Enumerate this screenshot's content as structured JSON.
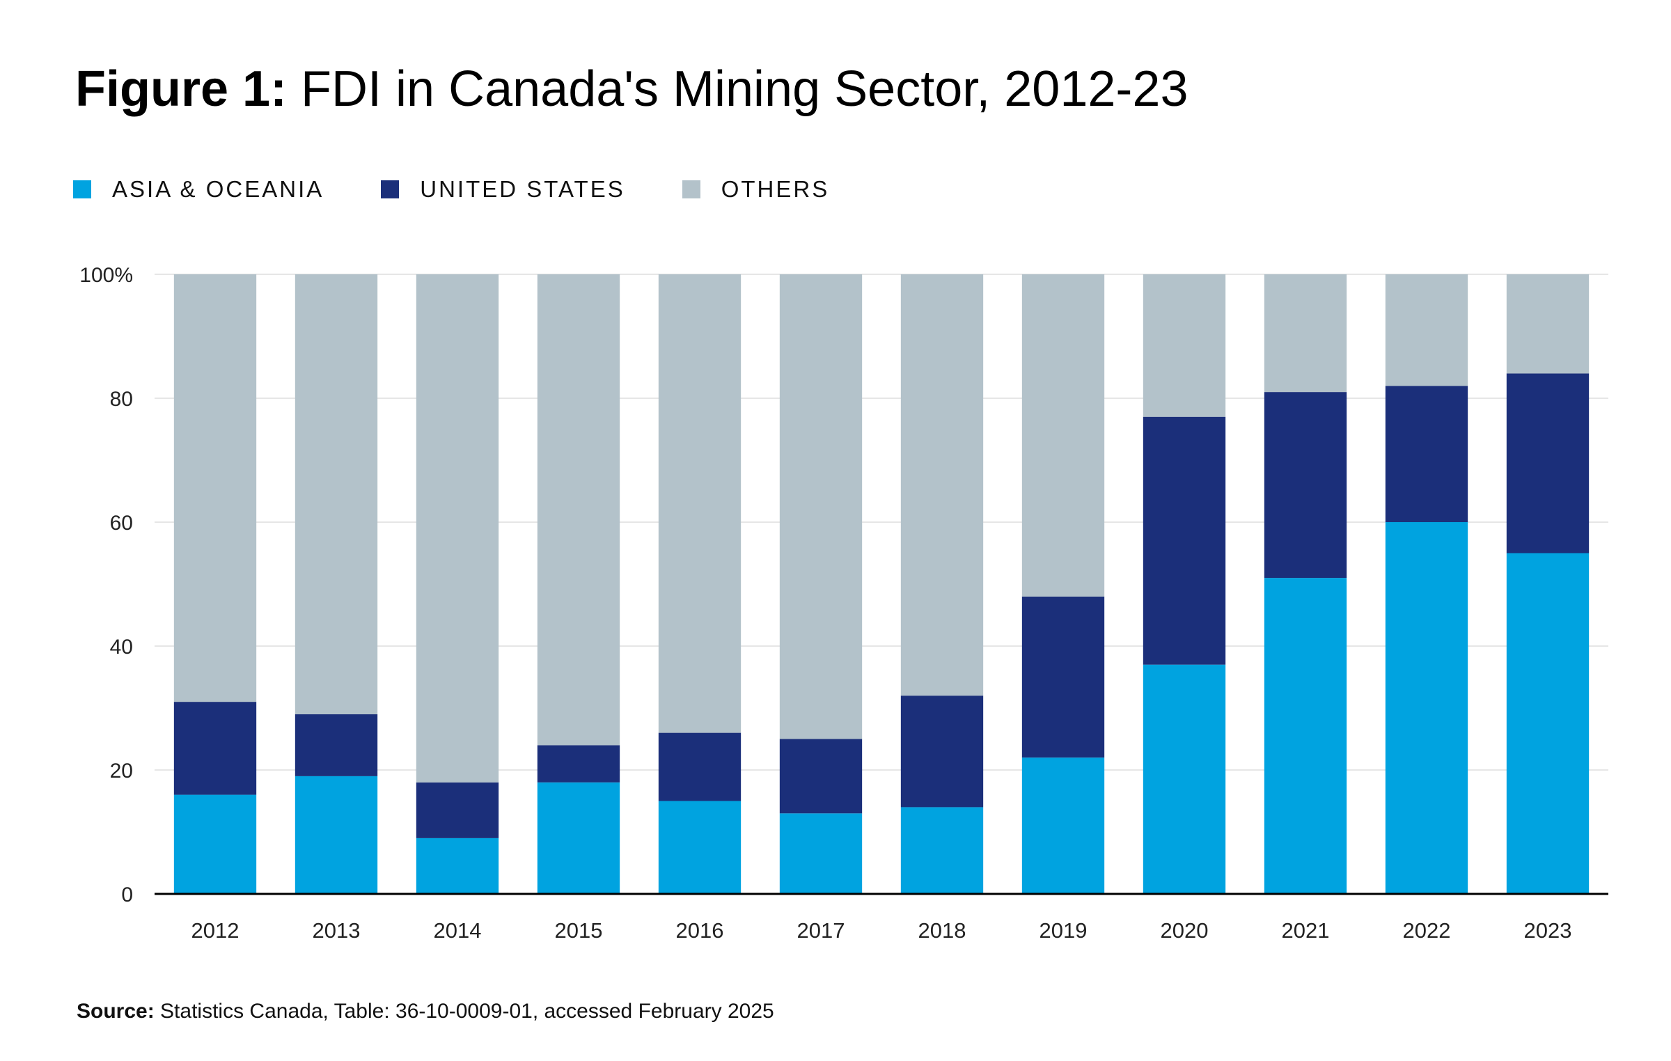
{
  "title_prefix": "Figure 1:",
  "title_main": "FDI in Canada's Mining Sector, 2012-23",
  "legend": [
    {
      "label": "ASIA & OCEANIA",
      "color": "#00A3E0"
    },
    {
      "label": "UNITED STATES",
      "color": "#1B2F7A"
    },
    {
      "label": "OTHERS",
      "color": "#B3C2CA"
    }
  ],
  "source_label": "Source:",
  "source_text": "Statistics Canada, Table: 36-10-0009-01, accessed February 2025",
  "chart_data": {
    "type": "bar",
    "stacked": true,
    "title": "FDI in Canada's Mining Sector, 2012-23",
    "categories": [
      "2012",
      "2013",
      "2014",
      "2015",
      "2016",
      "2017",
      "2018",
      "2019",
      "2020",
      "2021",
      "2022",
      "2023"
    ],
    "series": [
      {
        "name": "ASIA & OCEANIA",
        "color": "#00A3E0",
        "values": [
          16,
          19,
          9,
          18,
          15,
          13,
          14,
          22,
          37,
          51,
          60,
          55
        ]
      },
      {
        "name": "UNITED STATES",
        "color": "#1B2F7A",
        "values": [
          15,
          10,
          9,
          6,
          11,
          12,
          18,
          26,
          40,
          30,
          22,
          29
        ]
      },
      {
        "name": "OTHERS",
        "color": "#B3C2CA",
        "values": [
          69,
          71,
          82,
          76,
          74,
          75,
          68,
          52,
          23,
          19,
          18,
          16
        ]
      }
    ],
    "yticks": [
      "0",
      "20",
      "40",
      "60",
      "80",
      "100%"
    ],
    "ytick_values": [
      0,
      20,
      40,
      60,
      80,
      100
    ],
    "ylim": [
      0,
      100
    ],
    "xlabel": "",
    "ylabel": "",
    "grid": true,
    "legend_position": "top-left"
  }
}
